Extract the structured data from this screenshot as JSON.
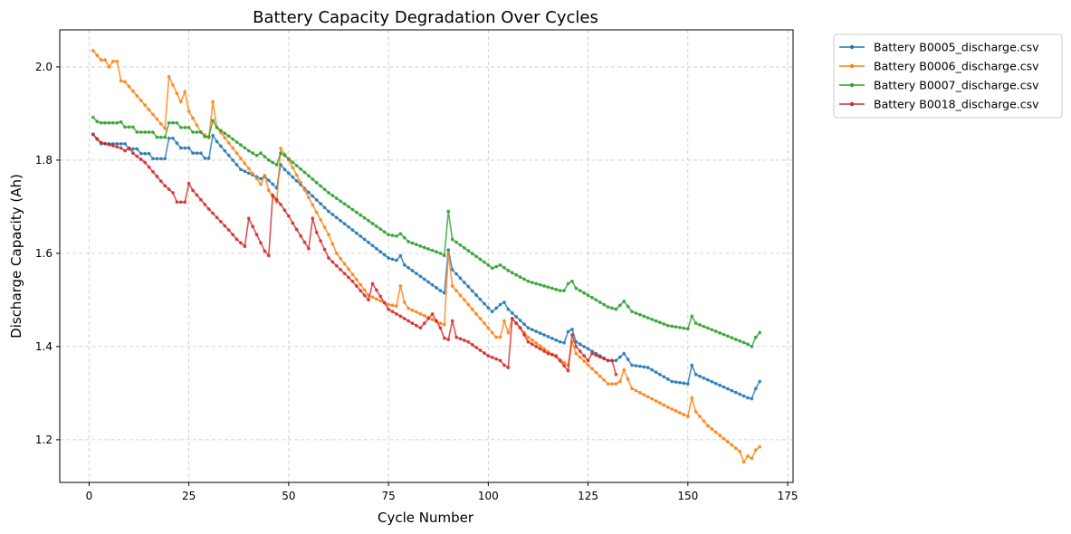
{
  "chart_data": {
    "type": "line",
    "title": "Battery Capacity Degradation Over Cycles",
    "xlabel": "Cycle Number",
    "ylabel": "Discharge Capacity (Ah)",
    "xlim": [
      -7.35,
      176.35
    ],
    "ylim": [
      1.1085,
      2.0795
    ],
    "xticks": [
      0,
      25,
      50,
      75,
      100,
      125,
      150,
      175
    ],
    "yticks": [
      1.2,
      1.4,
      1.6,
      1.8,
      2.0
    ],
    "xtick_labels": [
      "0",
      "25",
      "50",
      "75",
      "100",
      "125",
      "150",
      "175"
    ],
    "ytick_labels": [
      "1.2",
      "1.4",
      "1.6",
      "1.8",
      "2.0"
    ],
    "grid": true,
    "legend_position": "outside-top-right",
    "series": [
      {
        "name": "Battery B0005_discharge.csv",
        "color": "#1f77b4",
        "keypoints": [
          [
            1,
            1.856
          ],
          [
            2,
            1.846
          ],
          [
            3,
            1.835
          ],
          [
            9,
            1.835
          ],
          [
            10,
            1.824
          ],
          [
            12,
            1.824
          ],
          [
            13,
            1.814
          ],
          [
            15,
            1.814
          ],
          [
            16,
            1.803
          ],
          [
            19,
            1.803
          ],
          [
            20,
            1.847
          ],
          [
            21,
            1.847
          ],
          [
            23,
            1.826
          ],
          [
            25,
            1.826
          ],
          [
            26,
            1.815
          ],
          [
            28,
            1.815
          ],
          [
            29,
            1.804
          ],
          [
            30,
            1.804
          ],
          [
            31,
            1.853
          ],
          [
            32,
            1.84
          ],
          [
            38,
            1.78
          ],
          [
            43,
            1.76
          ],
          [
            44,
            1.765
          ],
          [
            47,
            1.74
          ],
          [
            48,
            1.79
          ],
          [
            49,
            1.78
          ],
          [
            60,
            1.69
          ],
          [
            75,
            1.59
          ],
          [
            77,
            1.585
          ],
          [
            78,
            1.595
          ],
          [
            79,
            1.575
          ],
          [
            88,
            1.52
          ],
          [
            89,
            1.515
          ],
          [
            90,
            1.607
          ],
          [
            91,
            1.565
          ],
          [
            100,
            1.483
          ],
          [
            101,
            1.475
          ],
          [
            103,
            1.49
          ],
          [
            104,
            1.495
          ],
          [
            105,
            1.48
          ],
          [
            110,
            1.44
          ],
          [
            118,
            1.41
          ],
          [
            119,
            1.408
          ],
          [
            120,
            1.432
          ],
          [
            121,
            1.437
          ],
          [
            122,
            1.41
          ],
          [
            130,
            1.37
          ],
          [
            132,
            1.37
          ],
          [
            134,
            1.385
          ],
          [
            136,
            1.36
          ],
          [
            140,
            1.355
          ],
          [
            146,
            1.325
          ],
          [
            150,
            1.32
          ],
          [
            151,
            1.36
          ],
          [
            152,
            1.34
          ],
          [
            165,
            1.29
          ],
          [
            166,
            1.288
          ],
          [
            167,
            1.31
          ],
          [
            168,
            1.325
          ]
        ]
      },
      {
        "name": "Battery B0006_discharge.csv",
        "color": "#ff7f0e",
        "keypoints": [
          [
            1,
            2.035
          ],
          [
            2,
            2.025
          ],
          [
            3,
            2.015
          ],
          [
            4,
            2.015
          ],
          [
            5,
            2.0
          ],
          [
            6,
            2.012
          ],
          [
            7,
            2.012
          ],
          [
            8,
            1.97
          ],
          [
            9,
            1.968
          ],
          [
            19,
            1.868
          ],
          [
            20,
            1.979
          ],
          [
            23,
            1.925
          ],
          [
            24,
            1.947
          ],
          [
            25,
            1.905
          ],
          [
            28,
            1.86
          ],
          [
            30,
            1.848
          ],
          [
            31,
            1.925
          ],
          [
            32,
            1.87
          ],
          [
            42,
            1.76
          ],
          [
            43,
            1.748
          ],
          [
            44,
            1.767
          ],
          [
            45,
            1.735
          ],
          [
            47,
            1.71
          ],
          [
            48,
            1.825
          ],
          [
            50,
            1.8
          ],
          [
            60,
            1.64
          ],
          [
            62,
            1.6
          ],
          [
            70,
            1.51
          ],
          [
            75,
            1.49
          ],
          [
            77,
            1.487
          ],
          [
            78,
            1.53
          ],
          [
            79,
            1.495
          ],
          [
            80,
            1.482
          ],
          [
            88,
            1.45
          ],
          [
            89,
            1.447
          ],
          [
            90,
            1.6
          ],
          [
            91,
            1.53
          ],
          [
            102,
            1.42
          ],
          [
            103,
            1.42
          ],
          [
            104,
            1.455
          ],
          [
            105,
            1.43
          ],
          [
            106,
            1.46
          ],
          [
            110,
            1.42
          ],
          [
            114,
            1.395
          ],
          [
            120,
            1.36
          ],
          [
            121,
            1.41
          ],
          [
            122,
            1.385
          ],
          [
            130,
            1.32
          ],
          [
            132,
            1.32
          ],
          [
            133,
            1.325
          ],
          [
            134,
            1.35
          ],
          [
            136,
            1.31
          ],
          [
            145,
            1.27
          ],
          [
            150,
            1.25
          ],
          [
            151,
            1.29
          ],
          [
            152,
            1.26
          ],
          [
            155,
            1.23
          ],
          [
            163,
            1.175
          ],
          [
            164,
            1.152
          ],
          [
            165,
            1.165
          ],
          [
            166,
            1.16
          ],
          [
            167,
            1.178
          ],
          [
            168,
            1.185
          ]
        ]
      },
      {
        "name": "Battery B0007_discharge.csv",
        "color": "#2ca02c",
        "keypoints": [
          [
            1,
            1.892
          ],
          [
            2,
            1.883
          ],
          [
            3,
            1.88
          ],
          [
            7,
            1.88
          ],
          [
            8,
            1.882
          ],
          [
            9,
            1.871
          ],
          [
            11,
            1.871
          ],
          [
            12,
            1.86
          ],
          [
            16,
            1.86
          ],
          [
            17,
            1.849
          ],
          [
            19,
            1.849
          ],
          [
            20,
            1.88
          ],
          [
            22,
            1.88
          ],
          [
            23,
            1.87
          ],
          [
            25,
            1.87
          ],
          [
            26,
            1.86
          ],
          [
            28,
            1.86
          ],
          [
            29,
            1.85
          ],
          [
            30,
            1.85
          ],
          [
            31,
            1.885
          ],
          [
            32,
            1.87
          ],
          [
            40,
            1.82
          ],
          [
            42,
            1.81
          ],
          [
            43,
            1.815
          ],
          [
            45,
            1.8
          ],
          [
            47,
            1.79
          ],
          [
            48,
            1.815
          ],
          [
            49,
            1.81
          ],
          [
            60,
            1.73
          ],
          [
            75,
            1.64
          ],
          [
            77,
            1.637
          ],
          [
            78,
            1.642
          ],
          [
            80,
            1.625
          ],
          [
            88,
            1.6
          ],
          [
            89,
            1.595
          ],
          [
            90,
            1.69
          ],
          [
            91,
            1.63
          ],
          [
            100,
            1.575
          ],
          [
            101,
            1.568
          ],
          [
            103,
            1.575
          ],
          [
            105,
            1.563
          ],
          [
            110,
            1.54
          ],
          [
            118,
            1.52
          ],
          [
            119,
            1.52
          ],
          [
            120,
            1.535
          ],
          [
            121,
            1.54
          ],
          [
            122,
            1.525
          ],
          [
            130,
            1.485
          ],
          [
            132,
            1.48
          ],
          [
            134,
            1.497
          ],
          [
            136,
            1.475
          ],
          [
            145,
            1.445
          ],
          [
            150,
            1.438
          ],
          [
            151,
            1.465
          ],
          [
            152,
            1.45
          ],
          [
            165,
            1.405
          ],
          [
            166,
            1.4
          ],
          [
            167,
            1.42
          ],
          [
            168,
            1.43
          ]
        ]
      },
      {
        "name": "Battery B0018_discharge.csv",
        "color": "#d62728",
        "keypoints": [
          [
            1,
            1.855
          ],
          [
            2,
            1.845
          ],
          [
            3,
            1.838
          ],
          [
            8,
            1.826
          ],
          [
            9,
            1.82
          ],
          [
            10,
            1.826
          ],
          [
            11,
            1.815
          ],
          [
            14,
            1.795
          ],
          [
            16,
            1.775
          ],
          [
            19,
            1.745
          ],
          [
            21,
            1.73
          ],
          [
            22,
            1.71
          ],
          [
            24,
            1.71
          ],
          [
            25,
            1.75
          ],
          [
            26,
            1.735
          ],
          [
            30,
            1.695
          ],
          [
            35,
            1.65
          ],
          [
            37,
            1.63
          ],
          [
            39,
            1.615
          ],
          [
            40,
            1.675
          ],
          [
            42,
            1.64
          ],
          [
            44,
            1.605
          ],
          [
            45,
            1.595
          ],
          [
            46,
            1.725
          ],
          [
            47,
            1.715
          ],
          [
            48,
            1.705
          ],
          [
            50,
            1.68
          ],
          [
            51,
            1.665
          ],
          [
            55,
            1.61
          ],
          [
            56,
            1.675
          ],
          [
            57,
            1.645
          ],
          [
            60,
            1.59
          ],
          [
            66,
            1.54
          ],
          [
            70,
            1.5
          ],
          [
            71,
            1.535
          ],
          [
            75,
            1.48
          ],
          [
            80,
            1.455
          ],
          [
            83,
            1.44
          ],
          [
            86,
            1.47
          ],
          [
            88,
            1.44
          ],
          [
            89,
            1.418
          ],
          [
            90,
            1.415
          ],
          [
            91,
            1.455
          ],
          [
            92,
            1.42
          ],
          [
            95,
            1.41
          ],
          [
            100,
            1.38
          ],
          [
            103,
            1.37
          ],
          [
            104,
            1.36
          ],
          [
            105,
            1.355
          ],
          [
            106,
            1.46
          ],
          [
            108,
            1.44
          ],
          [
            110,
            1.41
          ],
          [
            115,
            1.385
          ],
          [
            117,
            1.38
          ],
          [
            120,
            1.348
          ],
          [
            121,
            1.425
          ],
          [
            122,
            1.4
          ],
          [
            125,
            1.37
          ],
          [
            126,
            1.385
          ],
          [
            130,
            1.37
          ],
          [
            131,
            1.37
          ],
          [
            132,
            1.34
          ]
        ]
      }
    ]
  }
}
